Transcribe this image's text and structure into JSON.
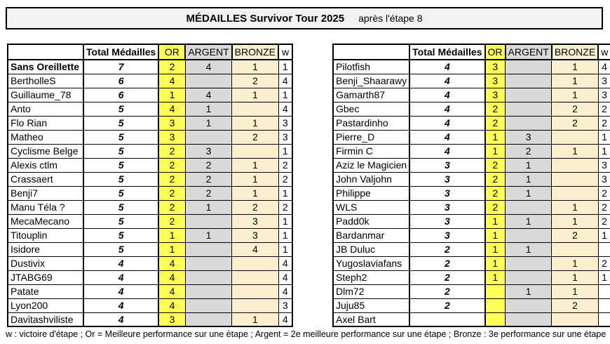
{
  "title": {
    "main": "MÉDAILLES Survivor Tour 2025",
    "suffix": "après l'étape 8"
  },
  "table_headers": {
    "player": "",
    "total": "Total Médailles",
    "or": "OR",
    "argent": "ARGENT",
    "bronze": "BRONZE",
    "w": "w"
  },
  "colors": {
    "or_bg": "#FFFF55",
    "argent_bg": "#D9D9D9",
    "bronze_bg": "#FBF0CE",
    "titlebar_bg": "#F2F2F2"
  },
  "left_table": {
    "rows": [
      {
        "name": "Sans Oreillette",
        "bold": true,
        "total": "7",
        "or": "2",
        "argent": "4",
        "bronze": "1",
        "w": "1"
      },
      {
        "name": "BertholleS",
        "bold": false,
        "total": "6",
        "or": "4",
        "argent": "",
        "bronze": "2",
        "w": "4"
      },
      {
        "name": "Guillaume_78",
        "bold": false,
        "total": "6",
        "or": "1",
        "argent": "4",
        "bronze": "1",
        "w": "1"
      },
      {
        "name": "Anto",
        "bold": false,
        "total": "5",
        "or": "4",
        "argent": "1",
        "bronze": "",
        "w": "4"
      },
      {
        "name": "Flo Rian",
        "bold": false,
        "total": "5",
        "or": "3",
        "argent": "1",
        "bronze": "1",
        "w": "3"
      },
      {
        "name": "Matheo",
        "bold": false,
        "total": "5",
        "or": "3",
        "argent": "",
        "bronze": "2",
        "w": "3"
      },
      {
        "name": "Cyclisme Belge",
        "bold": false,
        "total": "5",
        "or": "2",
        "argent": "3",
        "bronze": "",
        "w": "1"
      },
      {
        "name": "Alexis ctlm",
        "bold": false,
        "total": "5",
        "or": "2",
        "argent": "2",
        "bronze": "1",
        "w": "2"
      },
      {
        "name": "Crassaert",
        "bold": false,
        "total": "5",
        "or": "2",
        "argent": "2",
        "bronze": "1",
        "w": "2"
      },
      {
        "name": "Benji7",
        "bold": false,
        "total": "5",
        "or": "2",
        "argent": "2",
        "bronze": "1",
        "w": "1"
      },
      {
        "name": "Manu Téla ?",
        "bold": false,
        "total": "5",
        "or": "2",
        "argent": "1",
        "bronze": "2",
        "w": "2"
      },
      {
        "name": "MecaMecano",
        "bold": false,
        "total": "5",
        "or": "2",
        "argent": "",
        "bronze": "3",
        "w": "1"
      },
      {
        "name": "Titouplin",
        "bold": false,
        "total": "5",
        "or": "1",
        "argent": "1",
        "bronze": "3",
        "w": "1"
      },
      {
        "name": "Isidore",
        "bold": false,
        "total": "5",
        "or": "1",
        "argent": "",
        "bronze": "4",
        "w": "1"
      },
      {
        "name": "Dustivix",
        "bold": false,
        "total": "4",
        "or": "4",
        "argent": "",
        "bronze": "",
        "w": "4"
      },
      {
        "name": "JTABG69",
        "bold": false,
        "total": "4",
        "or": "4",
        "argent": "",
        "bronze": "",
        "w": "4"
      },
      {
        "name": "Patate",
        "bold": false,
        "total": "4",
        "or": "4",
        "argent": "",
        "bronze": "",
        "w": "4"
      },
      {
        "name": "Lyon200",
        "bold": false,
        "total": "4",
        "or": "4",
        "argent": "",
        "bronze": "",
        "w": "3"
      },
      {
        "name": "Davitashviliste",
        "bold": false,
        "total": "4",
        "or": "3",
        "argent": "",
        "bronze": "1",
        "w": "4"
      }
    ]
  },
  "right_table": {
    "rows": [
      {
        "name": "Pilotfish",
        "bold": false,
        "total": "4",
        "or": "3",
        "argent": "",
        "bronze": "1",
        "w": "4"
      },
      {
        "name": "Benji_Shaarawy",
        "bold": false,
        "total": "4",
        "or": "3",
        "argent": "",
        "bronze": "1",
        "w": "3"
      },
      {
        "name": "Gamarth87",
        "bold": false,
        "total": "4",
        "or": "3",
        "argent": "",
        "bronze": "1",
        "w": "3"
      },
      {
        "name": "Gbec",
        "bold": false,
        "total": "4",
        "or": "2",
        "argent": "",
        "bronze": "2",
        "w": "2"
      },
      {
        "name": "Pastardinho",
        "bold": false,
        "total": "4",
        "or": "2",
        "argent": "",
        "bronze": "2",
        "w": "2"
      },
      {
        "name": "Pierre_D",
        "bold": false,
        "total": "4",
        "or": "1",
        "argent": "3",
        "bronze": "",
        "w": "1"
      },
      {
        "name": "Firmin C",
        "bold": false,
        "total": "4",
        "or": "1",
        "argent": "2",
        "bronze": "1",
        "w": "1"
      },
      {
        "name": "Aziz le Magicien",
        "bold": false,
        "total": "3",
        "or": "2",
        "argent": "1",
        "bronze": "",
        "w": "3"
      },
      {
        "name": "John Valjohn",
        "bold": false,
        "total": "3",
        "or": "2",
        "argent": "1",
        "bronze": "",
        "w": "3"
      },
      {
        "name": "Philippe",
        "bold": false,
        "total": "3",
        "or": "2",
        "argent": "1",
        "bronze": "",
        "w": "2"
      },
      {
        "name": "WLS",
        "bold": false,
        "total": "3",
        "or": "2",
        "argent": "",
        "bronze": "1",
        "w": "2"
      },
      {
        "name": "Padd0k",
        "bold": false,
        "total": "3",
        "or": "1",
        "argent": "1",
        "bronze": "1",
        "w": "2"
      },
      {
        "name": "Bardanmar",
        "bold": false,
        "total": "3",
        "or": "1",
        "argent": "",
        "bronze": "2",
        "w": "1"
      },
      {
        "name": "JB Duluc",
        "bold": false,
        "total": "2",
        "or": "1",
        "argent": "1",
        "bronze": "",
        "w": ""
      },
      {
        "name": "Yugoslaviafans",
        "bold": false,
        "total": "2",
        "or": "1",
        "argent": "",
        "bronze": "1",
        "w": "2"
      },
      {
        "name": "Steph2",
        "bold": false,
        "total": "2",
        "or": "1",
        "argent": "",
        "bronze": "1",
        "w": "1"
      },
      {
        "name": "Dlm72",
        "bold": false,
        "total": "2",
        "or": "",
        "argent": "1",
        "bronze": "1",
        "w": ""
      },
      {
        "name": "Juju85",
        "bold": false,
        "total": "2",
        "or": "",
        "argent": "",
        "bronze": "2",
        "w": ""
      },
      {
        "name": "Axel Bart",
        "bold": false,
        "total": "",
        "or": "",
        "argent": "",
        "bronze": "",
        "w": ""
      }
    ]
  },
  "footer": {
    "legend": "w : victoire d'étape ; Or = Meilleure performance sur une étape ; Argent = 2e meilleure performance sur une étape ;  Bronze : 3e performance sur une étape"
  }
}
